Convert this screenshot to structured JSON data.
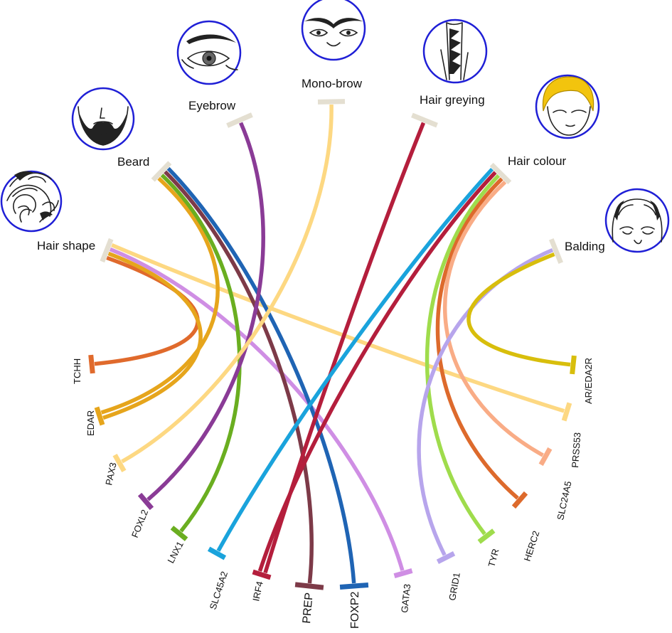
{
  "traits": [
    {
      "id": "hair_shape",
      "label": "Hair shape",
      "icon": "curly-hair-icon"
    },
    {
      "id": "beard",
      "label": "Beard",
      "icon": "beard-icon"
    },
    {
      "id": "eyebrow",
      "label": "Eyebrow",
      "icon": "eyebrow-icon"
    },
    {
      "id": "mono_brow",
      "label": "Mono-brow",
      "icon": "mono-brow-icon"
    },
    {
      "id": "hair_greying",
      "label": "Hair greying",
      "icon": "grey-hair-icon"
    },
    {
      "id": "hair_colour",
      "label": "Hair colour",
      "icon": "blond-hair-icon"
    },
    {
      "id": "balding",
      "label": "Balding",
      "icon": "balding-head-icon"
    }
  ],
  "genes": [
    {
      "id": "TCHH",
      "label": "TCHH",
      "color": "#e06a2c"
    },
    {
      "id": "EDAR",
      "label": "EDAR",
      "color": "#e6a51c"
    },
    {
      "id": "PAX3",
      "label": "PAX3",
      "color": "#fdd882"
    },
    {
      "id": "FOXL2",
      "label": "FOXL2",
      "color": "#8a3b96"
    },
    {
      "id": "LNX1",
      "label": "LNX1",
      "color": "#6aae20"
    },
    {
      "id": "SLC45A2",
      "label": "SLC45A2",
      "color": "#1aa3dc"
    },
    {
      "id": "IRF4",
      "label": "IRF4",
      "color": "#b41e3c"
    },
    {
      "id": "PREP",
      "label": "PREP",
      "color": "#7d3a48"
    },
    {
      "id": "FOXP2",
      "label": "FOXP2",
      "color": "#1f64b4"
    },
    {
      "id": "GATA3",
      "label": "GATA3",
      "color": "#cf8ee4"
    },
    {
      "id": "GRID1",
      "label": "GRID1",
      "color": "#b7a5ec"
    },
    {
      "id": "TYR",
      "label": "TYR",
      "color": "#9fdc4c"
    },
    {
      "id": "HERC2",
      "label": "HERC2",
      "color": "#dd6a2c"
    },
    {
      "id": "SLC24A5",
      "label": "SLC24A5",
      "color": "#f9ac86"
    },
    {
      "id": "PRSS53",
      "label": "PRSS53",
      "color": "#fdd882"
    },
    {
      "id": "AR_EDA2R",
      "label": "AR/EDA2R",
      "color": "#d8be0c"
    }
  ],
  "links": [
    {
      "trait": "hair_shape",
      "gene": "TCHH"
    },
    {
      "trait": "hair_shape",
      "gene": "EDAR"
    },
    {
      "trait": "hair_shape",
      "gene": "GATA3"
    },
    {
      "trait": "hair_shape",
      "gene": "PRSS53"
    },
    {
      "trait": "beard",
      "gene": "EDAR"
    },
    {
      "trait": "beard",
      "gene": "LNX1"
    },
    {
      "trait": "beard",
      "gene": "PREP"
    },
    {
      "trait": "beard",
      "gene": "FOXP2"
    },
    {
      "trait": "eyebrow",
      "gene": "FOXL2"
    },
    {
      "trait": "mono_brow",
      "gene": "PAX3"
    },
    {
      "trait": "hair_greying",
      "gene": "IRF4"
    },
    {
      "trait": "hair_colour",
      "gene": "SLC45A2"
    },
    {
      "trait": "hair_colour",
      "gene": "IRF4"
    },
    {
      "trait": "hair_colour",
      "gene": "TYR"
    },
    {
      "trait": "hair_colour",
      "gene": "HERC2"
    },
    {
      "trait": "hair_colour",
      "gene": "SLC24A5"
    },
    {
      "trait": "balding",
      "gene": "GRID1"
    },
    {
      "trait": "balding",
      "gene": "AR_EDA2R"
    }
  ]
}
